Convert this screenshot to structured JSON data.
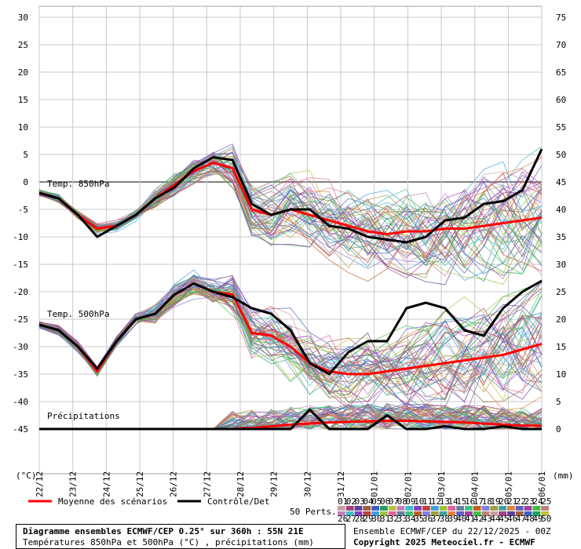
{
  "chart_data": {
    "type": "line",
    "left_axis": {
      "unit_label": "(°C)",
      "ticks": [
        30,
        25,
        20,
        15,
        10,
        5,
        0,
        -5,
        -10,
        -15,
        -20,
        -25,
        -30,
        -35,
        -40,
        -45
      ],
      "range": [
        -50,
        30
      ]
    },
    "right_axis": {
      "unit_label": "(mm)",
      "ticks": [
        75,
        70,
        65,
        60,
        55,
        50,
        45,
        40,
        35,
        30,
        25,
        20,
        15,
        10,
        5,
        0
      ],
      "range": [
        -5,
        75
      ]
    },
    "x_dates": [
      "22/12",
      "23/12",
      "24/12",
      "25/12",
      "26/12",
      "27/12",
      "28/12",
      "29/12",
      "30/12",
      "31/12",
      "01/01",
      "02/01",
      "03/01",
      "04/01",
      "05/01",
      "06/01"
    ],
    "grid": true,
    "panel_labels": {
      "t850": "Temp. 850hPa",
      "t500": "Temp. 500hPa",
      "precip": "Précipitations"
    },
    "series": [
      {
        "name": "Moyenne des scénarios",
        "color": "#ff0000",
        "t850": [
          -2,
          -3,
          -6,
          -8.5,
          -8,
          -6,
          -3,
          -0.5,
          2,
          3.5,
          2.5,
          -5,
          -6,
          -5,
          -6,
          -7,
          -8,
          -9,
          -9.5,
          -9,
          -9,
          -8.5,
          -8.5,
          -8,
          -7.5,
          -7,
          -6.5
        ],
        "t500": [
          -26,
          -27,
          -30,
          -34.5,
          -29,
          -25,
          -24,
          -20.5,
          -18.5,
          -20,
          -20.5,
          -27.5,
          -28,
          -30,
          -33,
          -34.5,
          -35,
          -35,
          -34.5,
          -34,
          -33.5,
          -33,
          -32.5,
          -32,
          -31.5,
          -30.5,
          -29.5
        ],
        "precip": [
          0,
          0,
          0,
          0,
          0,
          0,
          0,
          0,
          0,
          0,
          0,
          0.2,
          0.5,
          0.8,
          1.0,
          1.2,
          1.3,
          1.4,
          1.5,
          1.5,
          1.4,
          1.3,
          1.2,
          1.0,
          0.8,
          0.6,
          0.6
        ]
      },
      {
        "name": "Contrôle/Det",
        "color": "#000000",
        "t850": [
          -2,
          -3,
          -6,
          -10,
          -8,
          -6,
          -3,
          -1,
          2.5,
          4.5,
          4,
          -4,
          -6,
          -5,
          -5,
          -8,
          -8.5,
          -10,
          -10.5,
          -11,
          -10,
          -7,
          -6.5,
          -4,
          -3.5,
          -1.5,
          6
        ],
        "t500": [
          -26,
          -27,
          -30,
          -34,
          -29,
          -25,
          -24,
          -20.5,
          -18.5,
          -20,
          -21,
          -23,
          -24,
          -27,
          -33,
          -35,
          -31,
          -29,
          -29,
          -23,
          -22,
          -23,
          -27,
          -28,
          -23,
          -20,
          -18
        ],
        "precip": [
          0,
          0,
          0,
          0,
          0,
          0,
          0,
          0,
          0,
          0,
          0,
          0,
          0,
          0,
          3.5,
          0,
          0,
          0,
          2.5,
          0,
          0,
          0.5,
          0,
          0,
          0.5,
          0,
          0
        ]
      }
    ],
    "legend": [
      "Moyenne des scénarios",
      "Contrôle/Det"
    ]
  },
  "perts": {
    "label": "50 Perts.",
    "numbers_row1": [
      "01",
      "02",
      "03",
      "04",
      "05",
      "06",
      "07",
      "08",
      "09",
      "10",
      "11",
      "12",
      "13",
      "14",
      "15",
      "16",
      "17",
      "18",
      "19",
      "20",
      "21",
      "22",
      "23",
      "24",
      "25"
    ],
    "numbers_row2": [
      "26",
      "27",
      "28",
      "29",
      "30",
      "31",
      "32",
      "33",
      "34",
      "35",
      "36",
      "37",
      "38",
      "39",
      "40",
      "41",
      "42",
      "43",
      "44",
      "45",
      "46",
      "47",
      "48",
      "49",
      "50"
    ],
    "colors": [
      "#c8a0a0",
      "#a04080",
      "#6040a0",
      "#a06040",
      "#4060c0",
      "#20a060",
      "#c0c040",
      "#c080c0",
      "#40c0c0",
      "#8040c0",
      "#c04040",
      "#40a0e0",
      "#a0c040",
      "#e060a0",
      "#6080a0",
      "#40c080",
      "#c06020",
      "#8080e0",
      "#a0a040",
      "#40a0a0",
      "#e08040",
      "#6060c0",
      "#a040a0",
      "#40c040",
      "#c08080"
    ]
  },
  "footer": {
    "title": "Diagramme ensembles ECMWF/CEP 0.25° sur 360h : 55N 21E",
    "subtitle": "Températures 850hPa et 500hPa (°C) , précipitations (mm)",
    "run": "Ensemble ECMWF/CEP du 22/12/2025 - 00Z",
    "copyright": "Copyright 2025 Meteociel.fr - ECMWF"
  }
}
